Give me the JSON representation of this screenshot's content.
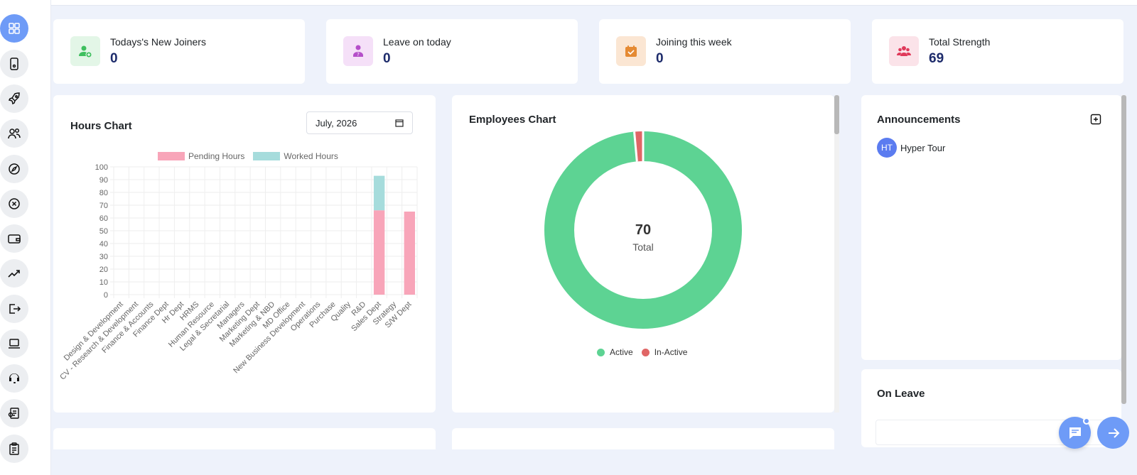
{
  "stats": [
    {
      "label": "Todays's New Joiners",
      "value": "0",
      "icon": "user-plus-icon",
      "color": "#3fbf5f",
      "bg": "#e3f6e7"
    },
    {
      "label": "Leave on today",
      "value": "0",
      "icon": "user-question-icon",
      "color": "#b54fc9",
      "bg": "#f5e0f8"
    },
    {
      "label": "Joining this week",
      "value": "0",
      "icon": "calendar-check-icon",
      "color": "#e58a33",
      "bg": "#fbe6d3"
    },
    {
      "label": "Total Strength",
      "value": "69",
      "icon": "users-icon",
      "color": "#e0395a",
      "bg": "#fbe3e9"
    }
  ],
  "hours_chart": {
    "title": "Hours Chart",
    "month_value": "July, 2026",
    "chart_data": {
      "type": "bar",
      "stacked": true,
      "categories": [
        "Design & Development",
        "CV - Research & Development",
        "Finance & Accounts",
        "Finance Dept",
        "Hr Dept",
        "HRMS",
        "Human Resource",
        "Legal & Secretarial",
        "Managers",
        "Marketing Dept",
        "Marketing & NBD",
        "MD Office",
        "New Business Development",
        "Operations",
        "Purchase",
        "Quality",
        "R&D",
        "Sales Dept",
        "Strategy",
        "S/W Dept"
      ],
      "series": [
        {
          "name": "Pending Hours",
          "color": "#f8a5b9",
          "values": [
            0,
            0,
            0,
            0,
            0,
            0,
            0,
            0,
            0,
            0,
            0,
            0,
            0,
            0,
            0,
            0,
            0,
            66,
            0,
            65
          ]
        },
        {
          "name": "Worked Hours",
          "color": "#a6dcdc",
          "values": [
            0,
            0,
            0,
            0,
            0,
            0,
            0,
            0,
            0,
            0,
            0,
            0,
            0,
            0,
            0,
            0,
            0,
            27,
            0,
            0
          ]
        }
      ],
      "ylim": [
        0,
        100
      ],
      "yticks": [
        0,
        10,
        20,
        30,
        40,
        50,
        60,
        70,
        80,
        90,
        100
      ],
      "grid": true,
      "legend": "top"
    }
  },
  "employees_chart": {
    "title": "Employees Chart",
    "center_value": "70",
    "center_label": "Total",
    "chart_data": {
      "type": "pie",
      "donut": true,
      "labels": [
        "Active",
        "In-Active"
      ],
      "values": [
        69,
        1
      ],
      "colors": [
        "#5dd393",
        "#e06666"
      ],
      "legend": "bottom"
    }
  },
  "announcements": {
    "title": "Announcements",
    "items": [
      {
        "initials": "HT",
        "name": "Hyper Tour"
      }
    ]
  },
  "on_leave": {
    "title": "On Leave"
  },
  "sidebar": {
    "icons": [
      "dashboard-icon",
      "tablet-icon",
      "rocket-icon",
      "users-icon",
      "compass-icon",
      "close-circle-icon",
      "wallet-icon",
      "trending-icon",
      "logout-icon",
      "laptop-icon",
      "headset-icon",
      "gear-document-icon",
      "clipboard-icon"
    ]
  },
  "fabs": [
    {
      "icon": "chat-icon"
    },
    {
      "icon": "arrow-right-icon"
    }
  ]
}
